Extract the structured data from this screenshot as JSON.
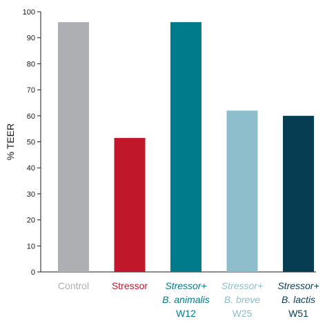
{
  "chart_data": {
    "type": "bar",
    "ylabel": "% TEER",
    "ylim": [
      0,
      100
    ],
    "yticks": [
      0,
      10,
      20,
      30,
      40,
      50,
      60,
      70,
      80,
      90,
      100
    ],
    "grid": false,
    "categories": [
      {
        "lines": [
          {
            "text": "Control",
            "italic": false
          }
        ]
      },
      {
        "lines": [
          {
            "text": "Stressor",
            "italic": false
          }
        ]
      },
      {
        "lines": [
          {
            "text": "Stressor+",
            "italic": true
          },
          {
            "text": "B. animalis",
            "italic": true
          },
          {
            "text": "W12",
            "italic": false
          }
        ]
      },
      {
        "lines": [
          {
            "text": "Stressor+",
            "italic": true
          },
          {
            "text": "B. breve",
            "italic": true
          },
          {
            "text": "W25",
            "italic": false
          }
        ]
      },
      {
        "lines": [
          {
            "text": "Stressor+",
            "italic": true
          },
          {
            "text": "B. lactis",
            "italic": true
          },
          {
            "text": "W51",
            "italic": false
          }
        ]
      }
    ],
    "values": [
      96,
      51.5,
      96,
      62,
      60
    ],
    "colors": [
      "#adafb2",
      "#c0182a",
      "#007b8c",
      "#8ebdcb",
      "#063d52"
    ],
    "label_colors": [
      "#adafb2",
      "#c0182a",
      "#007b8c",
      "#8ebdcb",
      "#063d52"
    ]
  }
}
